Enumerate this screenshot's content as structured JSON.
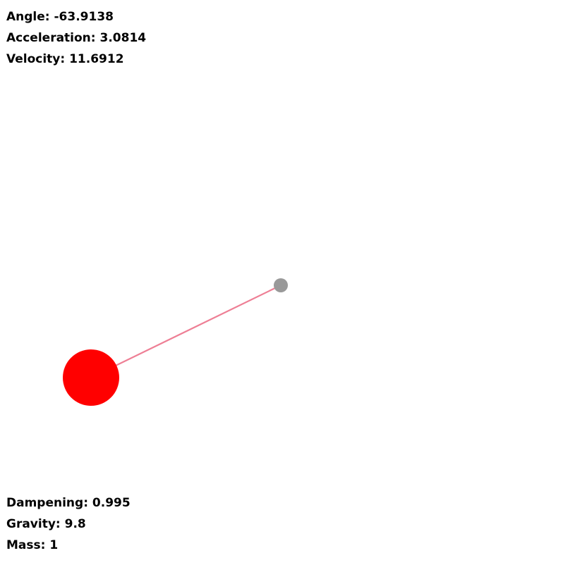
{
  "stats": {
    "angle": "Angle: -63.9138",
    "acceleration": "Acceleration: 3.0814",
    "velocity": "Velocity: 11.6912"
  },
  "params": {
    "dampening": "Dampening: 0.995",
    "gravity": "Gravity: 9.8",
    "mass": "Mass: 1"
  },
  "colors": {
    "background": "#ffffff",
    "pivot": "#999999",
    "rod": "#ee7f95",
    "bob": "#ff0000",
    "text": "#000000"
  }
}
